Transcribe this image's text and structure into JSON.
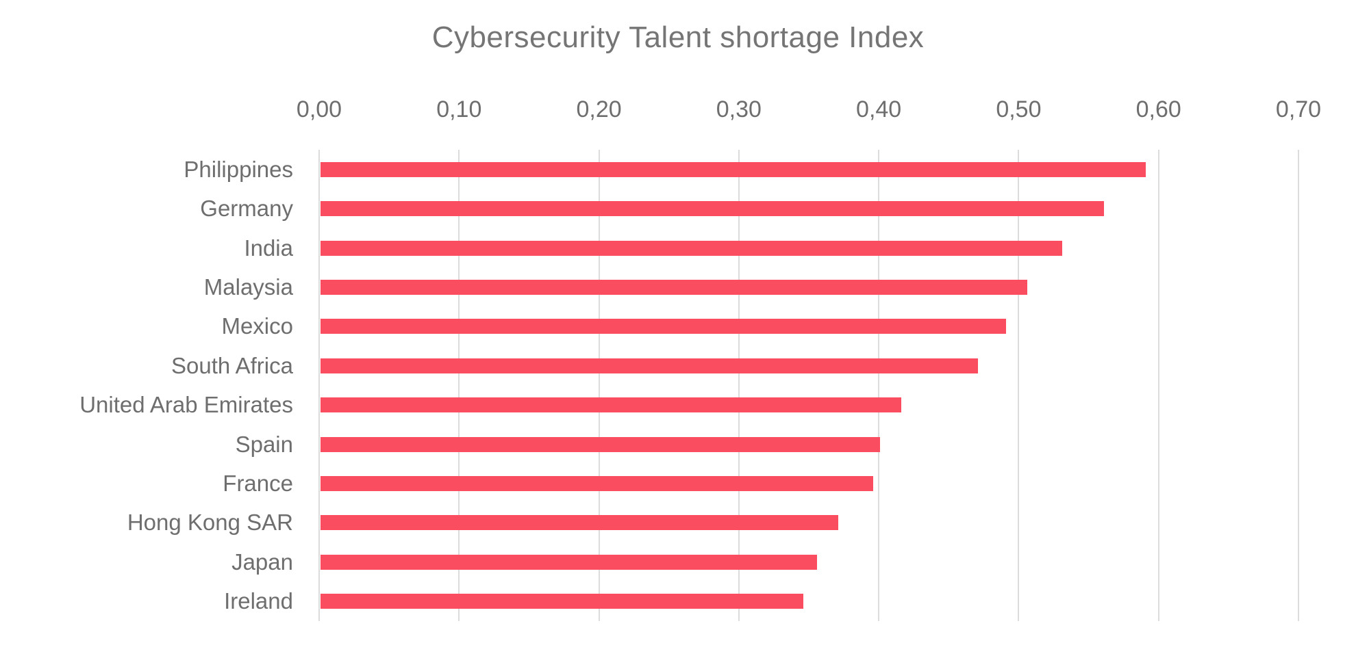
{
  "title": "Cybersecurity Talent shortage Index",
  "colors": {
    "bar": "#fb4d60",
    "title_text": "#757575",
    "axis_text": "#6e6e6e",
    "gridline": "#dcdcdc",
    "background": "#ffffff"
  },
  "chart_data": {
    "type": "bar",
    "orientation": "horizontal",
    "title": "Cybersecurity Talent shortage Index",
    "categories": [
      "Philippines",
      "Germany",
      "India",
      "Malaysia",
      "Mexico",
      "South Africa",
      "United Arab Emirates",
      "Spain",
      "France",
      "Hong Kong SAR",
      "Japan",
      "Ireland"
    ],
    "values": [
      0.59,
      0.56,
      0.53,
      0.505,
      0.49,
      0.47,
      0.415,
      0.4,
      0.395,
      0.37,
      0.355,
      0.345
    ],
    "xlabel": "",
    "ylabel": "",
    "xlim": [
      0,
      0.7
    ],
    "x_tick_values": [
      0,
      0.1,
      0.2,
      0.3,
      0.4,
      0.5,
      0.6,
      0.7
    ],
    "x_tick_labels": [
      "0,00",
      "0,10",
      "0,20",
      "0,30",
      "0,40",
      "0,50",
      "0,60",
      "0,70"
    ],
    "tick_position": "top",
    "grid": "vertical",
    "legend": "none",
    "decimal_separator": ","
  }
}
